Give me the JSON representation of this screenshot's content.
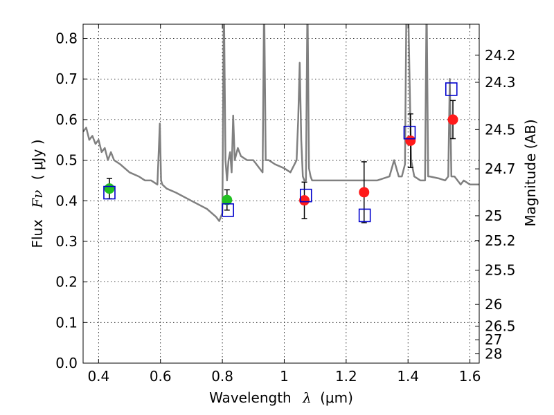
{
  "chart_data": {
    "type": "scatter",
    "xlabel": "Wavelength",
    "xlabel_symbol": "λ",
    "xlabel_unit": "(μm)",
    "ylabel": "Flux",
    "ylabel_symbol": "Fν",
    "ylabel_unit": "( μJy )",
    "y2label": "Magnitude (AB)",
    "xlim": [
      0.35,
      1.63
    ],
    "ylim": [
      0.0,
      0.835
    ],
    "grid": true,
    "x_ticks": [
      0.4,
      0.6,
      0.8,
      1.0,
      1.2,
      1.4,
      1.6
    ],
    "x_tick_labels": [
      "0.4",
      "0.6",
      "0.8",
      "1",
      "1.2",
      "1.4",
      "1.6"
    ],
    "y_ticks": [
      0.0,
      0.1,
      0.2,
      0.3,
      0.4,
      0.5,
      0.6,
      0.7,
      0.8
    ],
    "y_tick_labels": [
      "0.0",
      "0.1",
      "0.2",
      "0.3",
      "0.4",
      "0.5",
      "0.6",
      "0.7",
      "0.8"
    ],
    "y2_ticks": [
      {
        "label": "24.2",
        "mag": 24.2
      },
      {
        "label": "24.3",
        "mag": 24.3
      },
      {
        "label": "24.5",
        "mag": 24.5
      },
      {
        "label": "24.7",
        "mag": 24.7
      },
      {
        "label": "25",
        "mag": 25.0
      },
      {
        "label": "25.2",
        "mag": 25.2
      },
      {
        "label": "25.5",
        "mag": 25.5
      },
      {
        "label": "26",
        "mag": 26.0
      },
      {
        "label": "26.5",
        "mag": 26.5
      },
      {
        "label": "27",
        "mag": 27.0
      },
      {
        "label": "28",
        "mag": 28.0
      }
    ],
    "series": [
      {
        "kind": "line",
        "color": "#808080",
        "x": [
          0.35,
          0.36,
          0.37,
          0.38,
          0.39,
          0.4,
          0.41,
          0.42,
          0.43,
          0.44,
          0.45,
          0.47,
          0.5,
          0.53,
          0.55,
          0.57,
          0.59,
          0.598,
          0.602,
          0.606,
          0.62,
          0.65,
          0.7,
          0.75,
          0.78,
          0.79,
          0.8,
          0.805,
          0.81,
          0.815,
          0.82,
          0.825,
          0.83,
          0.835,
          0.84,
          0.85,
          0.86,
          0.88,
          0.9,
          0.92,
          0.93,
          0.935,
          0.94,
          0.95,
          0.97,
          1.0,
          1.02,
          1.04,
          1.045,
          1.05,
          1.055,
          1.06,
          1.065,
          1.07,
          1.075,
          1.08,
          1.085,
          1.09,
          1.1,
          1.15,
          1.2,
          1.25,
          1.3,
          1.34,
          1.355,
          1.37,
          1.38,
          1.39,
          1.395,
          1.4,
          1.41,
          1.42,
          1.44,
          1.455,
          1.46,
          1.465,
          1.47,
          1.5,
          1.52,
          1.53,
          1.535,
          1.54,
          1.55,
          1.57,
          1.58,
          1.6,
          1.63
        ],
        "y": [
          0.57,
          0.58,
          0.55,
          0.56,
          0.54,
          0.55,
          0.52,
          0.53,
          0.5,
          0.52,
          0.5,
          0.49,
          0.47,
          0.46,
          0.45,
          0.45,
          0.44,
          0.59,
          0.45,
          0.44,
          0.43,
          0.42,
          0.4,
          0.38,
          0.36,
          0.35,
          0.37,
          0.9,
          0.5,
          0.45,
          0.5,
          0.52,
          0.47,
          0.61,
          0.5,
          0.53,
          0.51,
          0.5,
          0.5,
          0.48,
          0.47,
          0.9,
          0.5,
          0.5,
          0.49,
          0.48,
          0.47,
          0.5,
          0.6,
          0.74,
          0.55,
          0.46,
          0.45,
          0.45,
          0.9,
          0.48,
          0.46,
          0.45,
          0.45,
          0.45,
          0.45,
          0.45,
          0.45,
          0.46,
          0.5,
          0.46,
          0.46,
          0.49,
          0.9,
          0.9,
          0.5,
          0.46,
          0.45,
          0.45,
          0.9,
          0.46,
          0.46,
          0.455,
          0.45,
          0.46,
          0.7,
          0.46,
          0.46,
          0.44,
          0.45,
          0.44,
          0.44
        ]
      },
      {
        "kind": "points",
        "marker": "filled-circle",
        "color": "#22c022",
        "x": [
          0.435,
          0.815
        ],
        "y": [
          0.43,
          0.402
        ],
        "yerr": [
          0.025,
          0.025
        ]
      },
      {
        "kind": "points",
        "marker": "filled-circle",
        "color": "#ff1a1a",
        "x": [
          1.065,
          1.258,
          1.408,
          1.545
        ],
        "y": [
          0.401,
          0.421,
          0.548,
          0.6
        ],
        "yerr": [
          0.045,
          0.075,
          0.066,
          0.047
        ]
      },
      {
        "kind": "points",
        "marker": "open-square",
        "color": "#0000cc",
        "x": [
          0.435,
          0.818,
          1.07,
          1.26,
          1.405,
          1.54
        ],
        "y": [
          0.42,
          0.377,
          0.413,
          0.364,
          0.568,
          0.675
        ]
      }
    ]
  }
}
